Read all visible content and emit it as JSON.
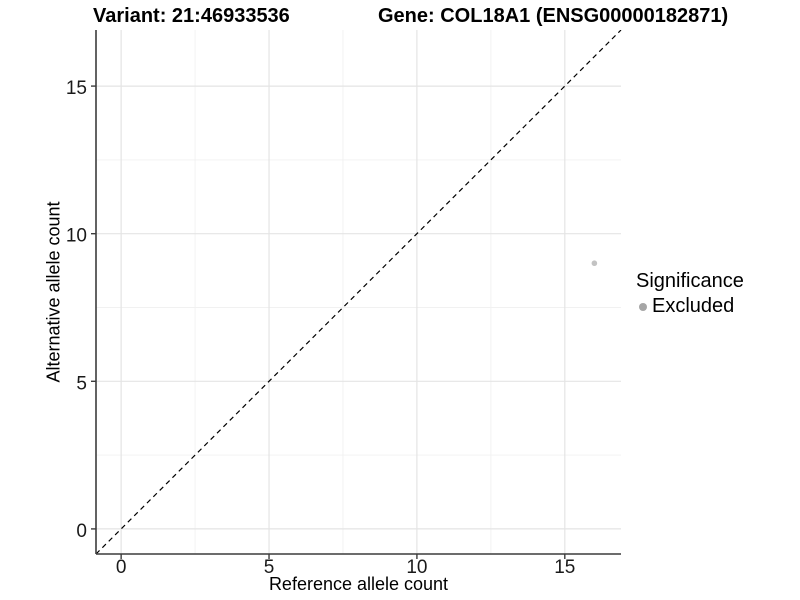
{
  "chart_data": {
    "type": "scatter",
    "titles": {
      "left": "Variant: 21:46933536",
      "right": "Gene: COL18A1 (ENSG00000182871)"
    },
    "xlabel": "Reference allele count",
    "ylabel": "Alternative allele count",
    "xlim": [
      -0.85,
      16.9
    ],
    "ylim": [
      -0.85,
      16.9
    ],
    "xticks": [
      0,
      5,
      10,
      15
    ],
    "yticks": [
      0,
      5,
      10,
      15
    ],
    "xminor": [
      2.5,
      7.5,
      12.5
    ],
    "yminor": [
      2.5,
      7.5,
      12.5
    ],
    "grid": {
      "major": true,
      "minor": true
    },
    "series": [
      {
        "name": "Excluded",
        "color": "#c3c3c3",
        "points": [
          {
            "x": 16,
            "y": 9
          }
        ]
      }
    ],
    "reference_line": {
      "kind": "identity",
      "equation": "y = x",
      "style": "dashed",
      "color": "#000000"
    },
    "legend": {
      "title": "Significance",
      "position": "right",
      "entries": [
        {
          "label": "Excluded",
          "marker": "circle",
          "color": "#a6a6a6"
        }
      ]
    },
    "colors": {
      "background": "#ffffff",
      "grid_major": "#e4e4e4",
      "grid_minor": "#f1f1f1",
      "axis_line": "#3c3c3c",
      "tick_label": "#1a1a1a"
    }
  }
}
